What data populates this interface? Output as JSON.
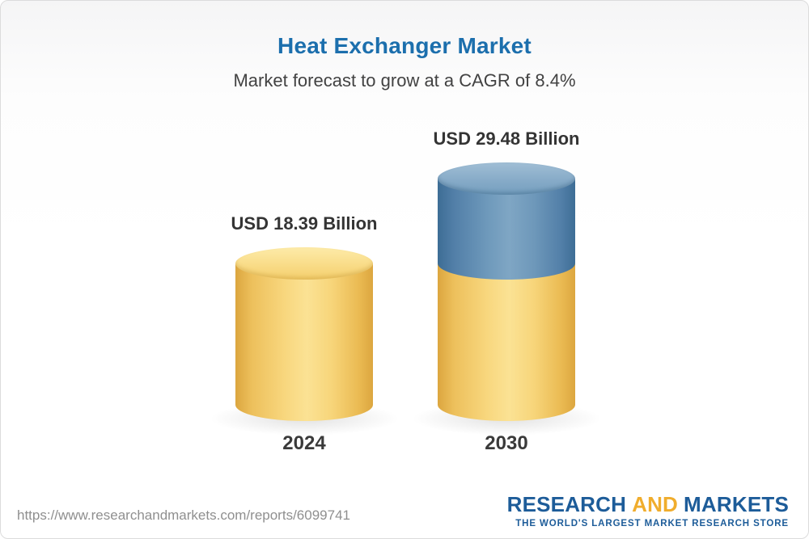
{
  "header": {
    "title": "Heat Exchanger Market",
    "subtitle": "Market forecast to grow at a CAGR of 8.4%"
  },
  "chart_data": {
    "type": "bar",
    "variant": "3d-cylinder",
    "title": "Heat Exchanger Market",
    "subtitle": "Market forecast to grow at a CAGR of 8.4%",
    "cagr": "8.4%",
    "unit": "USD Billion",
    "categories": [
      "2024",
      "2030"
    ],
    "values": [
      18.39,
      29.48
    ],
    "value_labels": [
      "USD 18.39 Billion",
      "USD 29.48 Billion"
    ],
    "ylim": [
      0,
      32
    ],
    "grid": false,
    "legend": false,
    "bars": [
      {
        "category": "2024",
        "segments": [
          {
            "color": "yellow",
            "value": 18.39
          }
        ]
      },
      {
        "category": "2030",
        "segments": [
          {
            "color": "yellow",
            "value": 18.39
          },
          {
            "color": "blue",
            "value": 11.09
          }
        ]
      }
    ],
    "colors": {
      "yellow": "#f6c95f",
      "blue": "#5f8fb4",
      "label_text": "#343434"
    }
  },
  "footer": {
    "url": "https://www.researchandmarkets.com/reports/6099741",
    "logo": {
      "part1": "RESEARCH",
      "part2": "AND",
      "part3": "MARKETS",
      "tagline": "THE WORLD'S LARGEST MARKET RESEARCH STORE",
      "blue": "#1d5c99",
      "gold": "#f0ad2d"
    }
  }
}
